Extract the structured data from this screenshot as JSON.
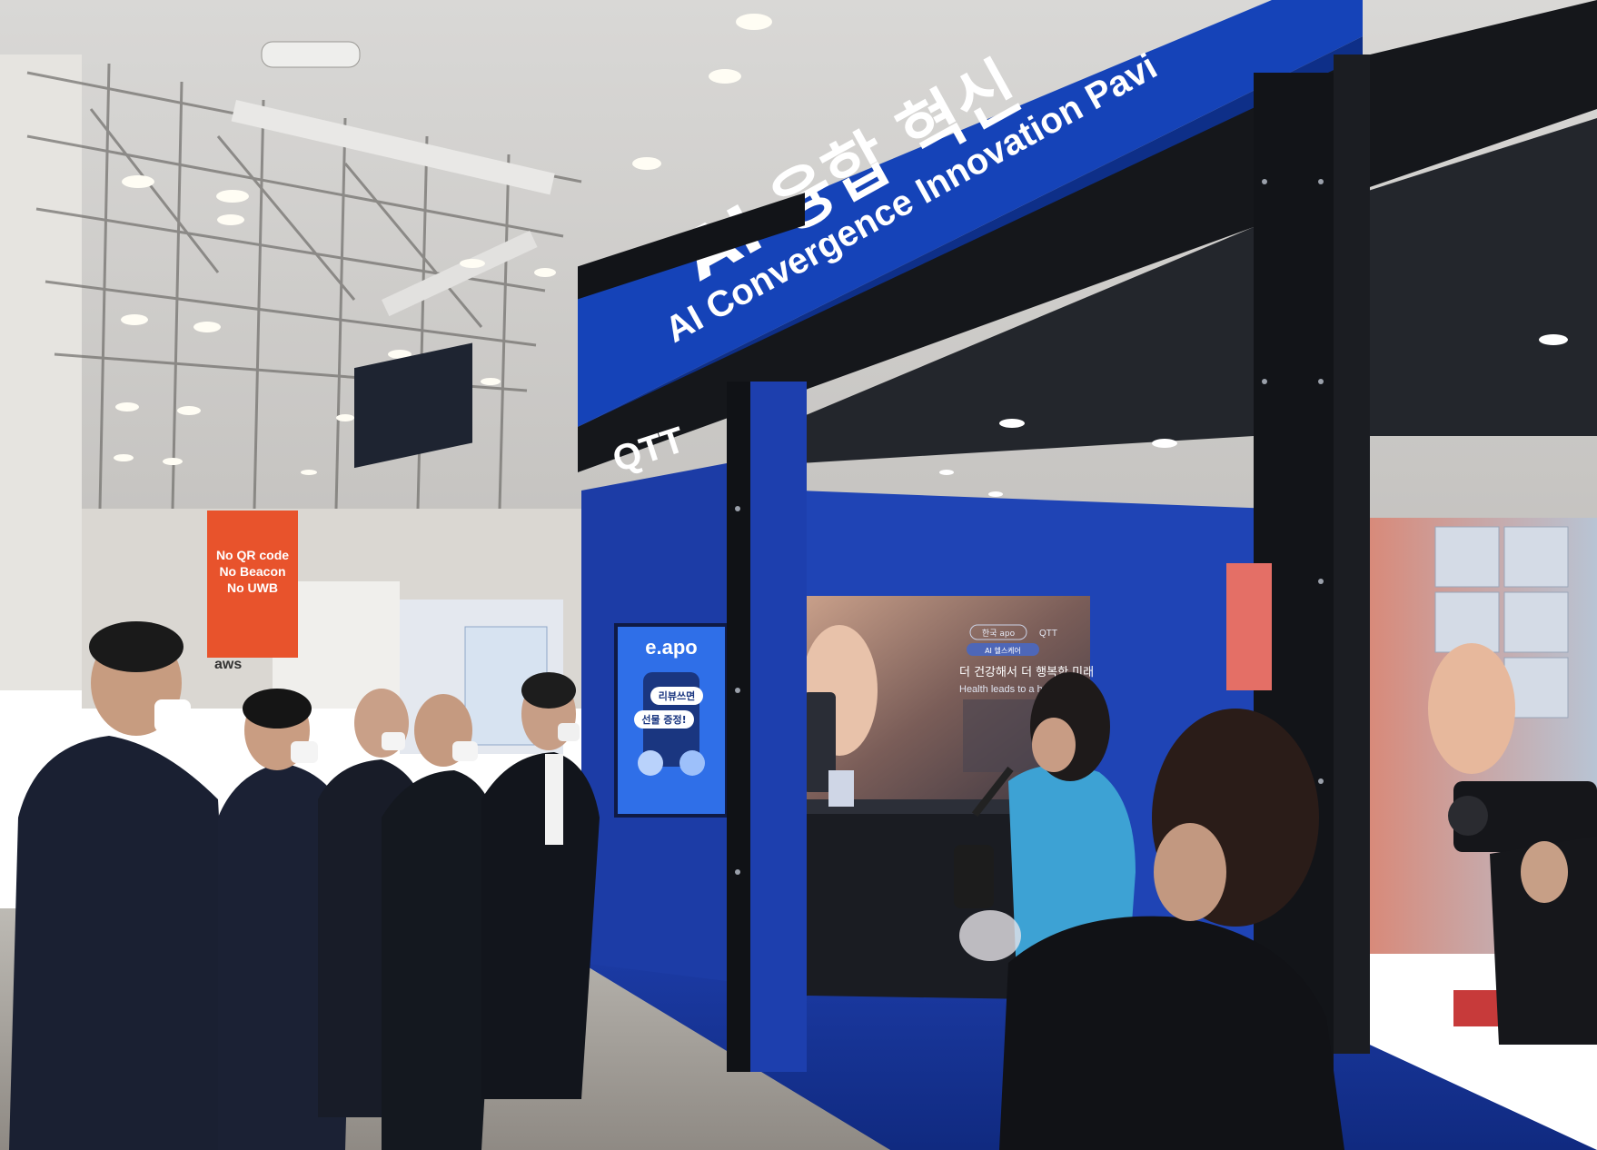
{
  "pavilion": {
    "title_ko": "AI 융합 혁신",
    "title_en": "AI Convergence Innovation Pavi",
    "booth_logo": "QTT"
  },
  "banner": {
    "line1": "No QR code",
    "line2": "No Beacon",
    "line3": "No UWB"
  },
  "exhibit_logos": {
    "aws": "aws"
  },
  "kiosk": {
    "brand": "e.apo",
    "bubble1": "리뷰쓰면",
    "bubble2": "선물 증정!"
  },
  "display": {
    "headline_ko": "더 건강해서 더 행복한 미래",
    "headline_en": "Health leads to a happier",
    "chip1": "한국 apo",
    "chip2": "QTT",
    "chip3": "AI 헬스케어"
  },
  "colors": {
    "pavilion_blue": "#1543b8",
    "booth_blue": "#1d3fae",
    "frame_black": "#121418",
    "banner_orange": "#e8532c"
  }
}
